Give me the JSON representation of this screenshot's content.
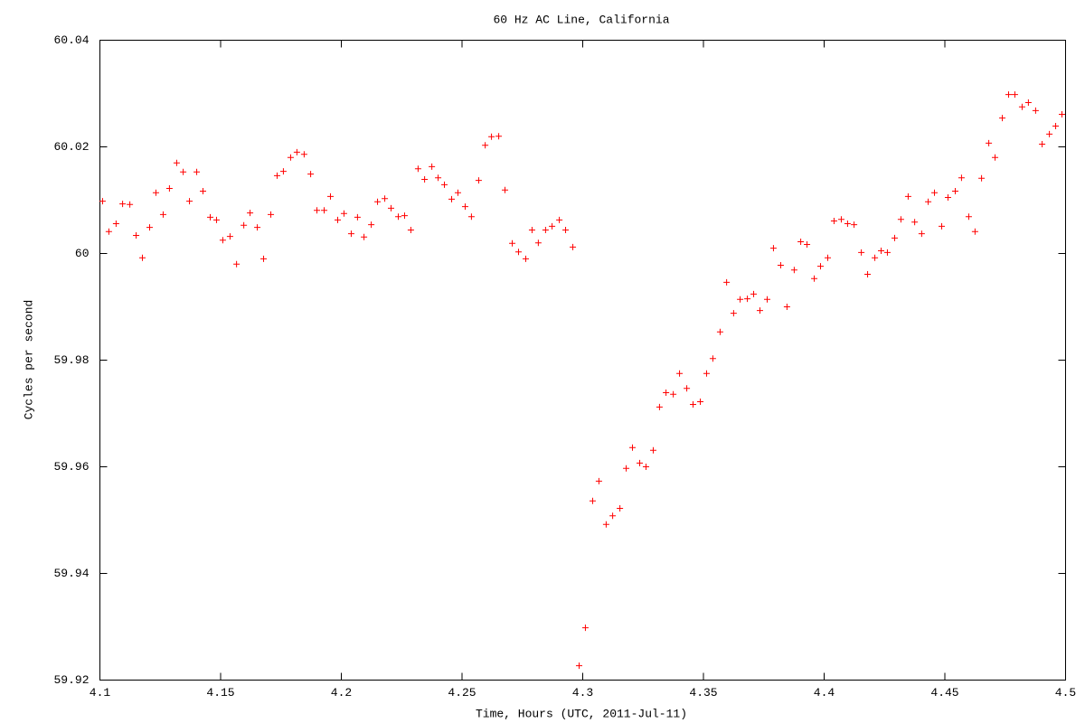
{
  "chart_data": {
    "type": "scatter",
    "title": "60 Hz AC Line, California",
    "x_label": "Time, Hours (UTC, 2011-Jul-11)",
    "y_label": "Cycles per second",
    "color": "#ff0000",
    "marker": "+",
    "xlim": [
      4.1,
      4.5
    ],
    "xticks": [
      4.1,
      4.15,
      4.2,
      4.25,
      4.3,
      4.35,
      4.4,
      4.45,
      4.5
    ],
    "ylim": [
      59.92,
      60.04
    ],
    "yticks": [
      59.92,
      59.94,
      59.96,
      59.98,
      60,
      60.02,
      60.04
    ],
    "x": [
      4.1011,
      4.1037,
      4.1067,
      4.1094,
      4.1124,
      4.115,
      4.1176,
      4.1206,
      4.1232,
      4.1262,
      4.1288,
      4.1318,
      4.1345,
      4.1371,
      4.1401,
      4.1427,
      4.1457,
      4.1483,
      4.1509,
      4.1539,
      4.1566,
      4.1596,
      4.1622,
      4.1652,
      4.1678,
      4.1708,
      4.1734,
      4.176,
      4.179,
      4.1816,
      4.1846,
      4.1873,
      4.1899,
      4.1929,
      4.1955,
      4.1985,
      4.2011,
      4.2041,
      4.2067,
      4.2094,
      4.2124,
      4.215,
      4.218,
      4.2206,
      4.2236,
      4.2262,
      4.2288,
      4.2318,
      4.2345,
      4.2375,
      4.2401,
      4.2427,
      4.2457,
      4.2483,
      4.2513,
      4.2539,
      4.2569,
      4.2596,
      4.2622,
      4.2652,
      4.2678,
      4.2708,
      4.2734,
      4.2764,
      4.279,
      4.2816,
      4.2846,
      4.2873,
      4.2903,
      4.2929,
      4.2959,
      4.2985,
      4.3011,
      4.3041,
      4.3067,
      4.3097,
      4.3124,
      4.3154,
      4.318,
      4.3206,
      4.3236,
      4.3262,
      4.3292,
      4.3318,
      4.3345,
      4.3375,
      4.3401,
      4.3431,
      4.3457,
      4.3487,
      4.3513,
      4.3539,
      4.3569,
      4.3596,
      4.3625,
      4.3652,
      4.3682,
      4.3708,
      4.3734,
      4.3764,
      4.379,
      4.382,
      4.3846,
      4.3876,
      4.3903,
      4.3929,
      4.3959,
      4.3985,
      4.4015,
      4.4041,
      4.4071,
      4.4097,
      4.4124,
      4.4154,
      4.418,
      4.421,
      4.4236,
      4.4262,
      4.4292,
      4.4318,
      4.4348,
      4.4375,
      4.4404,
      4.4431,
      4.4457,
      4.4487,
      4.4513,
      4.4543,
      4.4569,
      4.4599,
      4.4625,
      4.4652,
      4.4682,
      4.4708,
      4.4738,
      4.4764,
      4.479,
      4.482,
      4.4846,
      4.4876,
      4.4903,
      4.4933,
      4.4959,
      4.4985
    ],
    "values": [
      60.0098,
      60.0041,
      60.0056,
      60.0093,
      60.0092,
      60.0034,
      59.9992,
      60.0049,
      60.0114,
      60.0073,
      60.0122,
      60.017,
      60.0153,
      60.0098,
      60.0153,
      60.0117,
      60.0068,
      60.0063,
      60.0025,
      60.0032,
      59.998,
      60.0053,
      60.0076,
      60.0049,
      59.999,
      60.0073,
      60.0146,
      60.0154,
      60.018,
      60.019,
      60.0186,
      60.0149,
      60.0081,
      60.0081,
      60.0107,
      60.0063,
      60.0075,
      60.0037,
      60.0068,
      60.0031,
      60.0054,
      60.0097,
      60.0103,
      60.0085,
      60.0069,
      60.0071,
      60.0044,
      60.0159,
      60.0139,
      60.0163,
      60.0142,
      60.0129,
      60.0102,
      60.0114,
      60.0088,
      60.0069,
      60.0137,
      60.0203,
      60.0219,
      60.022,
      60.0119,
      60.0019,
      60.0003,
      59.999,
      60.0044,
      60.002,
      60.0044,
      60.0051,
      60.0063,
      60.0044,
      60.0012,
      59.9227,
      59.9298,
      59.9536,
      59.9573,
      59.9492,
      59.9508,
      59.9522,
      59.9597,
      59.9636,
      59.9607,
      59.96,
      59.9631,
      59.9712,
      59.9739,
      59.9736,
      59.9775,
      59.9747,
      59.9717,
      59.9722,
      59.9775,
      59.9803,
      59.9853,
      59.9946,
      59.9888,
      59.9914,
      59.9915,
      59.9924,
      59.9893,
      59.9914,
      60.001,
      59.9978,
      59.99,
      59.9969,
      60.0022,
      60.0017,
      59.9953,
      59.9976,
      59.9992,
      60.0061,
      60.0064,
      60.0056,
      60.0054,
      60.0002,
      59.9961,
      59.9992,
      60.0005,
      60.0002,
      60.0029,
      60.0064,
      60.0107,
      60.0059,
      60.0037,
      60.0097,
      60.0114,
      60.0051,
      60.0105,
      60.0117,
      60.0142,
      60.0069,
      60.0041,
      60.0141,
      60.0207,
      60.018,
      60.0254,
      60.0298,
      60.0298,
      60.0275,
      60.0283,
      60.0268,
      60.0205,
      60.0224,
      60.0239,
      60.0261
    ]
  }
}
